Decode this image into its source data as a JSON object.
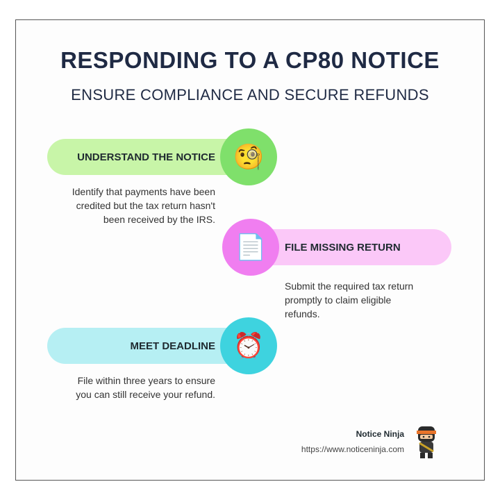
{
  "title": "RESPONDING TO A CP80 NOTICE",
  "subtitle": "ENSURE COMPLIANCE AND SECURE REFUNDS",
  "steps": [
    {
      "label": "UNDERSTAND THE NOTICE",
      "icon": "monocle-face-icon",
      "glyph": "🧐",
      "description": "Identify that payments have been credited but the tax return hasn't been received by the IRS.",
      "color": "#7fe06b",
      "light": "#c8f5a8"
    },
    {
      "label": "FILE MISSING RETURN",
      "icon": "document-icon",
      "glyph": "📄",
      "description": "Submit the required tax return promptly to claim eligible refunds.",
      "color": "#f07ef0",
      "light": "#fbc8f8"
    },
    {
      "label": "MEET DEADLINE",
      "icon": "alarm-clock-icon",
      "glyph": "⏰",
      "description": "File within three years to ensure you can still receive your refund.",
      "color": "#3ed3df",
      "light": "#b6eff3"
    }
  ],
  "footer": {
    "brand": "Notice Ninja",
    "url": "https://www.noticeninja.com",
    "logo_icon": "ninja-mascot-icon"
  }
}
